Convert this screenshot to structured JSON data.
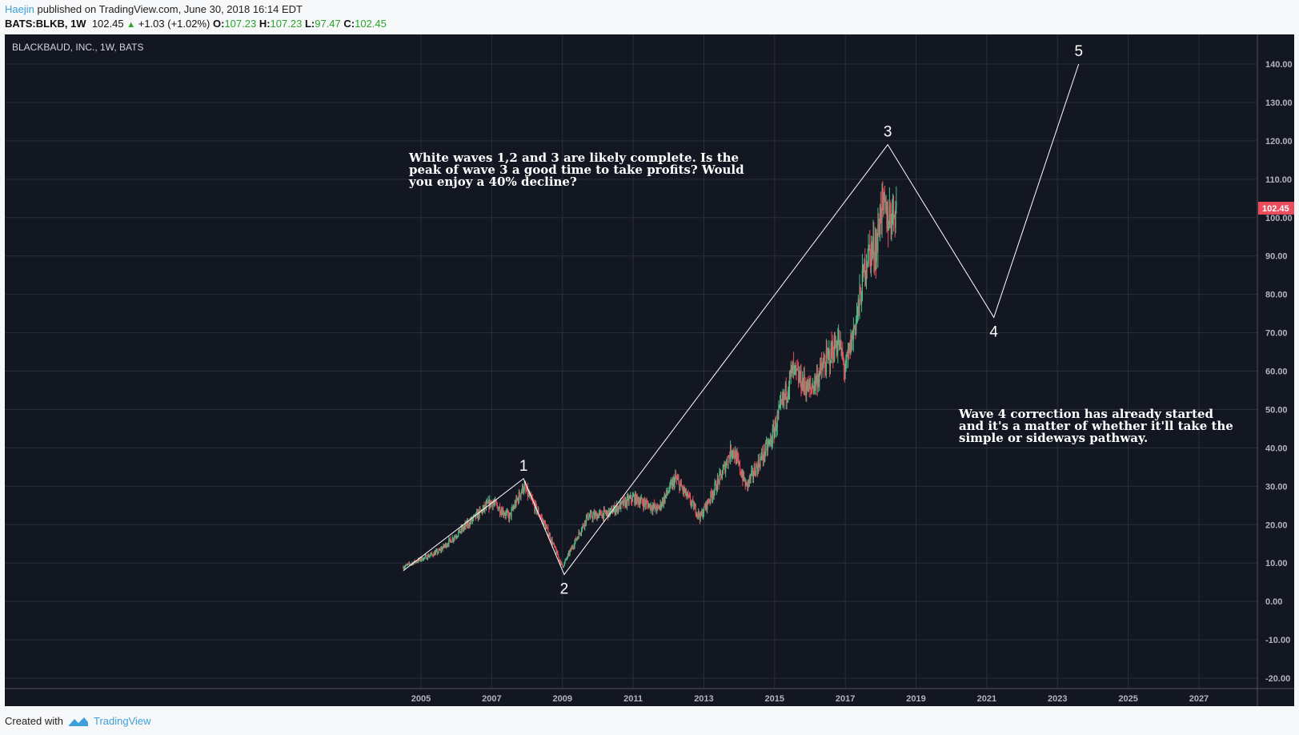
{
  "header": {
    "author": "Haejin",
    "published": "published on TradingView.com, June 30, 2018 16:14 EDT",
    "symbol": "BATS:BLKB, 1W",
    "last": "102.45",
    "change": "+1.03 (+1.02%)",
    "o_label": "O:",
    "o": "107.23",
    "h_label": "H:",
    "h": "107.23",
    "l_label": "L:",
    "l": "97.47",
    "c_label": "C:",
    "c": "102.45"
  },
  "footer": {
    "created": "Created with",
    "brand": "TradingView"
  },
  "colors": {
    "bg": "#131722",
    "up": "#53b987",
    "down": "#eb4d5c",
    "grid": "#2a2e39",
    "price_tag": "#eb4d5c"
  },
  "chart_data": {
    "type": "candlestick",
    "title": "BLACKBAUD, INC., 1W, BATS",
    "price_tag": "102.45",
    "ylim": [
      -20,
      140
    ],
    "yticks": [
      "140.00",
      "130.00",
      "120.00",
      "110.00",
      "100.00",
      "90.00",
      "80.00",
      "70.00",
      "60.00",
      "50.00",
      "40.00",
      "30.00",
      "20.00",
      "10.00",
      "0.00",
      "-10.00",
      "-20.00"
    ],
    "xlim": [
      2003.1,
      2029
    ],
    "xticks": [
      "2005",
      "2007",
      "2009",
      "2011",
      "2013",
      "2015",
      "2017",
      "2019",
      "2021",
      "2023",
      "2025",
      "2027"
    ],
    "price_path": [
      [
        2004.5,
        9
      ],
      [
        2005.5,
        13
      ],
      [
        2006.3,
        20
      ],
      [
        2007.0,
        26
      ],
      [
        2007.5,
        22
      ],
      [
        2007.9,
        30
      ],
      [
        2008.5,
        20
      ],
      [
        2009.0,
        9
      ],
      [
        2009.7,
        22
      ],
      [
        2010.3,
        23
      ],
      [
        2011.0,
        27
      ],
      [
        2011.7,
        24
      ],
      [
        2012.2,
        32
      ],
      [
        2012.9,
        22
      ],
      [
        2013.5,
        33
      ],
      [
        2013.8,
        40
      ],
      [
        2014.2,
        30
      ],
      [
        2014.9,
        42
      ],
      [
        2015.5,
        60
      ],
      [
        2016.0,
        55
      ],
      [
        2016.8,
        68
      ],
      [
        2017.0,
        60
      ],
      [
        2017.4,
        78
      ],
      [
        2017.6,
        90
      ],
      [
        2017.9,
        93
      ],
      [
        2018.0,
        103
      ],
      [
        2018.2,
        100
      ],
      [
        2018.4,
        102.45
      ]
    ],
    "waves": [
      {
        "label": "",
        "x": 2004.5,
        "y": 8
      },
      {
        "label": "1",
        "x": 2007.9,
        "y": 32
      },
      {
        "label": "2",
        "x": 2009.05,
        "y": 7
      },
      {
        "label": "3",
        "x": 2018.2,
        "y": 119
      },
      {
        "label": "4",
        "x": 2021.2,
        "y": 74
      },
      {
        "label": "5",
        "x": 2023.6,
        "y": 140
      }
    ],
    "annotations": [
      "White waves 1,2 and 3 are likely complete. Is the peak of wave 3 a good time to take profits? Would you enjoy a 40% decline?",
      "Wave 4 correction has already started and it's a matter of whether it'll take the simple or sideways pathway."
    ]
  }
}
